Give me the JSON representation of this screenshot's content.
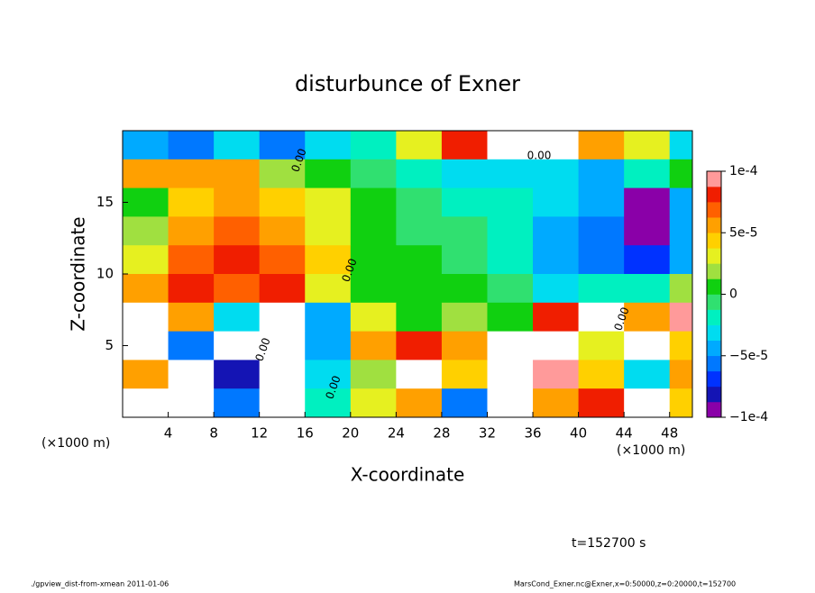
{
  "chart_data": {
    "type": "heatmap",
    "title": "disturbunce of Exner",
    "x_label": "X-coordinate",
    "y_label": "Z-coordinate",
    "x_unit": "(×1000 m)",
    "x_unit2": "(×1000 m)",
    "time_label": "t=152700 s",
    "footer_left": "./gpview_dist-from-xmean  2011-01-06",
    "footer_right": "MarsCond_Exner.nc@Exner,x=0:50000,z=0:20000,t=152700",
    "contour_labels": [
      "0.00",
      "0.00",
      "0.00",
      "0.00",
      "0.00",
      "0.00"
    ],
    "x": [
      2,
      6,
      10,
      14,
      18,
      22,
      26,
      30,
      34,
      38,
      42,
      46,
      50
    ],
    "y": [
      19,
      17,
      15,
      13,
      11,
      9,
      7,
      5,
      3,
      1
    ],
    "z": [
      [
        -4e-05,
        -6e-05,
        -3e-05,
        -6e-05,
        -3e-05,
        -2e-05,
        3e-05,
        8e-05,
        0.00012,
        0.00012,
        5e-05,
        3e-05,
        -3e-05
      ],
      [
        6e-05,
        5e-05,
        6e-05,
        2e-05,
        0,
        -1e-05,
        -2e-05,
        -3e-05,
        -3e-05,
        -3e-05,
        -4e-05,
        -2e-05,
        0
      ],
      [
        1e-05,
        4e-05,
        5e-05,
        4e-05,
        3e-05,
        1e-05,
        -1e-05,
        -2e-05,
        -2e-05,
        -3e-05,
        -5e-05,
        -9e-05,
        -4e-05
      ],
      [
        2e-05,
        6e-05,
        7e-05,
        6e-05,
        3e-05,
        1e-05,
        -1e-05,
        -1e-05,
        -2e-05,
        -4e-05,
        -6e-05,
        -0.00011,
        -5e-05
      ],
      [
        3e-05,
        7e-05,
        8e-05,
        7e-05,
        4e-05,
        1e-05,
        0,
        -1e-05,
        -2e-05,
        -4e-05,
        -6e-05,
        -7e-05,
        -4e-05
      ],
      [
        6e-05,
        8e-05,
        7e-05,
        8e-05,
        3e-05,
        1e-05,
        0,
        0,
        -1e-05,
        -3e-05,
        -2e-05,
        -2e-05,
        2e-05
      ],
      [
        0.00012,
        6e-05,
        -3e-05,
        0.00012,
        -4e-05,
        3e-05,
        1e-05,
        2e-05,
        1e-05,
        8e-05,
        0.00012,
        5e-05,
        9e-05
      ],
      [
        0.00012,
        -6e-05,
        0.00012,
        0.00012,
        -5e-05,
        5e-05,
        8e-05,
        6e-05,
        0.00012,
        0.00012,
        3e-05,
        0.00012,
        4e-05
      ],
      [
        6e-05,
        0.00014,
        -8e-05,
        0.00012,
        -3e-05,
        2e-05,
        0.00012,
        4e-05,
        0.00012,
        0.0001,
        4e-05,
        -3e-05,
        6e-05
      ],
      [
        0.00012,
        0.00012,
        -6e-05,
        0.00012,
        -2e-05,
        3e-05,
        6e-05,
        -6e-05,
        0.00012,
        6e-05,
        8e-05,
        0.00014,
        4e-05
      ]
    ],
    "xlim": [
      0,
      50
    ],
    "ylim": [
      0,
      20
    ],
    "xticks": [
      4,
      8,
      12,
      16,
      20,
      24,
      28,
      32,
      36,
      40,
      44,
      48
    ],
    "yticks": [
      5,
      10,
      15
    ],
    "clim": [
      -0.0001,
      0.0001
    ],
    "cticks": [
      {
        "value": -0.0001,
        "label": "−1e-4"
      },
      {
        "value": -5e-05,
        "label": "−5e-5"
      },
      0,
      {
        "value": 5e-05,
        "label": "5e-5"
      },
      {
        "value": 0.0001,
        "label": "1e-4"
      }
    ],
    "colors": [
      "#8a00a8",
      "#1414b4",
      "#0032ff",
      "#0078ff",
      "#00aaff",
      "#00dcf0",
      "#00f0c0",
      "#30e070",
      "#10d010",
      "#a0e040",
      "#e6f020",
      "#ffd000",
      "#ffa000",
      "#ff6000",
      "#f01e00",
      "#ff9a9a"
    ],
    "above_color": "#ffffff"
  }
}
